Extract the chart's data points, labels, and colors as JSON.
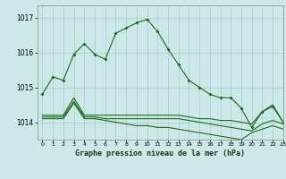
{
  "title": "Graphe pression niveau de la mer (hPa)",
  "bg_color": "#cce8e8",
  "grid_color": "#aacccc",
  "line_color": "#1a6b1a",
  "xlim": [
    -0.5,
    23
  ],
  "ylim": [
    1013.5,
    1017.35
  ],
  "yticks": [
    1014,
    1015,
    1016,
    1017
  ],
  "xticks": [
    0,
    1,
    2,
    3,
    4,
    5,
    6,
    7,
    8,
    9,
    10,
    11,
    12,
    13,
    14,
    15,
    16,
    17,
    18,
    19,
    20,
    21,
    22,
    23
  ],
  "series1": [
    1014.8,
    1015.3,
    1015.2,
    1015.95,
    1016.25,
    1015.95,
    1015.8,
    1016.55,
    1016.7,
    1016.85,
    1016.95,
    1016.6,
    1016.1,
    1015.65,
    1015.2,
    1015.0,
    1014.8,
    1014.7,
    1014.7,
    1014.4,
    1013.85,
    1014.3,
    1014.45,
    1014.0
  ],
  "series2": [
    1014.2,
    1014.2,
    1014.2,
    1014.7,
    1014.2,
    1014.2,
    1014.2,
    1014.2,
    1014.2,
    1014.2,
    1014.2,
    1014.2,
    1014.2,
    1014.2,
    1014.15,
    1014.1,
    1014.1,
    1014.05,
    1014.05,
    1014.0,
    1013.95,
    1014.3,
    1014.5,
    1014.0
  ],
  "series3": [
    1014.15,
    1014.15,
    1014.15,
    1014.6,
    1014.15,
    1014.15,
    1014.1,
    1014.1,
    1014.1,
    1014.1,
    1014.1,
    1014.1,
    1014.1,
    1014.1,
    1014.05,
    1014.0,
    1013.95,
    1013.9,
    1013.85,
    1013.8,
    1013.75,
    1013.95,
    1014.05,
    1013.95
  ],
  "series4": [
    1014.1,
    1014.1,
    1014.1,
    1014.55,
    1014.1,
    1014.1,
    1014.05,
    1014.0,
    1013.95,
    1013.9,
    1013.9,
    1013.85,
    1013.85,
    1013.8,
    1013.75,
    1013.7,
    1013.65,
    1013.6,
    1013.55,
    1013.5,
    1013.7,
    1013.8,
    1013.9,
    1013.8
  ]
}
